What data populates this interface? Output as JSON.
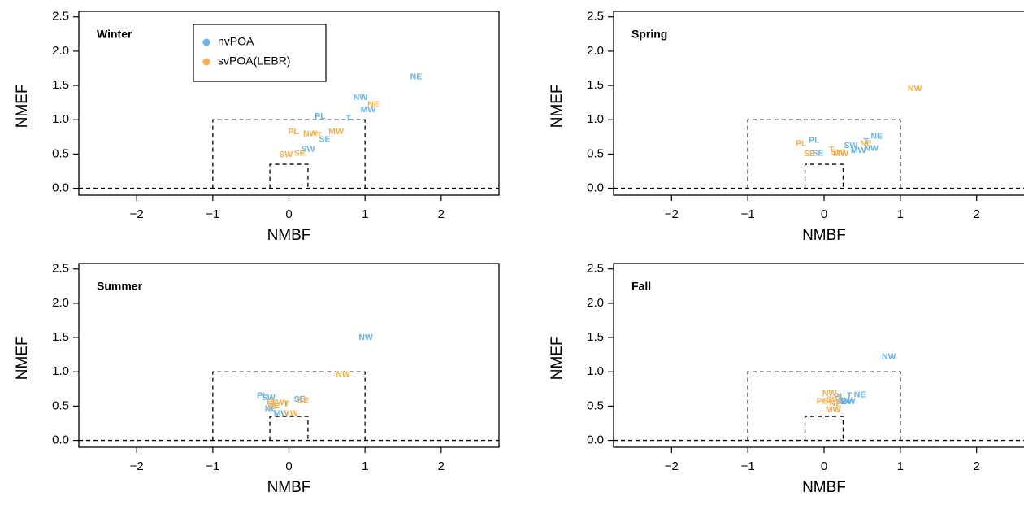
{
  "chart_data": [
    {
      "type": "scatter",
      "title": "Winter",
      "xlabel": "NMBF",
      "ylabel": "NMEF",
      "xlim": [
        -2.76,
        2.76
      ],
      "ylim": [
        -0.1,
        2.58
      ],
      "xticks": [
        -2,
        -1,
        0,
        1,
        2
      ],
      "yticks": [
        {
          "value": 0,
          "label": "0.0"
        },
        {
          "value": 0.5,
          "label": "0.5"
        },
        {
          "value": 1,
          "label": "1.0"
        },
        {
          "value": 1.5,
          "label": "1.5"
        },
        {
          "value": 2,
          "label": "2.0"
        },
        {
          "value": 2.5,
          "label": "2.5"
        }
      ],
      "reference_boxes": [
        {
          "x": [
            -1,
            1
          ],
          "y": [
            0,
            1
          ]
        },
        {
          "x": [
            -0.25,
            0.25
          ],
          "y": [
            0,
            0.35
          ]
        }
      ],
      "hline": 0,
      "legend": "top-left",
      "series": [
        {
          "name": "nvPOA",
          "color": "#66b3ee",
          "labels": [
            "NE",
            "NW",
            "MW",
            "T",
            "PL",
            "SE",
            "SW"
          ],
          "x": [
            1.67,
            0.94,
            1.04,
            0.78,
            0.41,
            0.47,
            0.25
          ],
          "values": [
            1.62,
            1.32,
            1.14,
            1.02,
            1.05,
            0.71,
            0.57
          ]
        },
        {
          "name": "svPOA(LEBR)",
          "color": "#f9ae4b",
          "labels": [
            "NE",
            "MW",
            "PL",
            "NW",
            "T",
            "SW",
            "SE"
          ],
          "x": [
            1.11,
            0.62,
            0.06,
            0.28,
            0.4,
            -0.04,
            0.14
          ],
          "values": [
            1.22,
            0.82,
            0.82,
            0.79,
            0.77,
            0.49,
            0.51
          ]
        }
      ]
    },
    {
      "type": "scatter",
      "title": "Spring",
      "xlabel": "NMBF",
      "ylabel": "NMEF",
      "xlim": [
        -2.76,
        2.76
      ],
      "ylim": [
        -0.1,
        2.58
      ],
      "xticks": [
        -2,
        -1,
        0,
        1,
        2
      ],
      "yticks": [
        {
          "value": 0,
          "label": "0.0"
        },
        {
          "value": 0.5,
          "label": "0.5"
        },
        {
          "value": 1,
          "label": "1.0"
        },
        {
          "value": 1.5,
          "label": "1.5"
        },
        {
          "value": 2,
          "label": "2.0"
        },
        {
          "value": 2.5,
          "label": "2.5"
        }
      ],
      "reference_boxes": [
        {
          "x": [
            -1,
            1
          ],
          "y": [
            0,
            1
          ]
        },
        {
          "x": [
            -0.25,
            0.25
          ],
          "y": [
            0,
            0.35
          ]
        }
      ],
      "hline": 0,
      "series": [
        {
          "color": "#66b3ee",
          "labels": [
            "PL",
            "SE",
            "T",
            "SW",
            "NE",
            "NW",
            "MW"
          ],
          "x": [
            -0.13,
            -0.08,
            0.55,
            0.35,
            0.69,
            0.62,
            0.45
          ],
          "values": [
            0.7,
            0.51,
            0.68,
            0.62,
            0.76,
            0.58,
            0.55
          ]
        },
        {
          "color": "#f9ae4b",
          "labels": [
            "PL",
            "SE",
            "T",
            "SW",
            "NE",
            "MW",
            "NW"
          ],
          "x": [
            -0.3,
            -0.19,
            0.1,
            0.18,
            0.55,
            0.22,
            1.19
          ],
          "values": [
            0.65,
            0.5,
            0.56,
            0.52,
            0.65,
            0.5,
            1.45
          ]
        }
      ]
    },
    {
      "type": "scatter",
      "title": "Summer",
      "xlabel": "NMBF",
      "ylabel": "NMEF",
      "xlim": [
        -2.76,
        2.76
      ],
      "ylim": [
        -0.1,
        2.58
      ],
      "xticks": [
        -2,
        -1,
        0,
        1,
        2
      ],
      "yticks": [
        {
          "value": 0,
          "label": "0.0"
        },
        {
          "value": 0.5,
          "label": "0.5"
        },
        {
          "value": 1,
          "label": "1.0"
        },
        {
          "value": 1.5,
          "label": "1.5"
        },
        {
          "value": 2,
          "label": "2.0"
        },
        {
          "value": 2.5,
          "label": "2.5"
        }
      ],
      "reference_boxes": [
        {
          "x": [
            -1,
            1
          ],
          "y": [
            0,
            1
          ]
        },
        {
          "x": [
            -0.25,
            0.25
          ],
          "y": [
            0,
            0.35
          ]
        }
      ],
      "hline": 0,
      "series": [
        {
          "color": "#66b3ee",
          "labels": [
            "NW",
            "PL",
            "SW",
            "SE",
            "NE",
            "MW",
            "T"
          ],
          "x": [
            1.01,
            -0.35,
            -0.27,
            0.14,
            -0.24,
            -0.1,
            -0.04
          ],
          "values": [
            1.5,
            0.65,
            0.62,
            0.6,
            0.46,
            0.39,
            0.53
          ]
        },
        {
          "color": "#f9ae4b",
          "labels": [
            "NW",
            "SE",
            "PL",
            "SW",
            "T",
            "NE",
            "MW"
          ],
          "x": [
            0.71,
            0.19,
            -0.22,
            -0.15,
            -0.03,
            -0.2,
            0.02
          ],
          "values": [
            0.96,
            0.58,
            0.56,
            0.55,
            0.53,
            0.5,
            0.39
          ]
        }
      ]
    },
    {
      "type": "scatter",
      "title": "Fall",
      "xlabel": "NMBF",
      "ylabel": "NMEF",
      "xlim": [
        -2.76,
        2.76
      ],
      "ylim": [
        -0.1,
        2.58
      ],
      "xticks": [
        -2,
        -1,
        0,
        1,
        2
      ],
      "yticks": [
        {
          "value": 0,
          "label": "0.0"
        },
        {
          "value": 0.5,
          "label": "0.5"
        },
        {
          "value": 1,
          "label": "1.0"
        },
        {
          "value": 1.5,
          "label": "1.5"
        },
        {
          "value": 2,
          "label": "2.0"
        },
        {
          "value": 2.5,
          "label": "2.5"
        }
      ],
      "reference_boxes": [
        {
          "x": [
            -1,
            1
          ],
          "y": [
            0,
            1
          ]
        },
        {
          "x": [
            -0.25,
            0.25
          ],
          "y": [
            0,
            0.35
          ]
        }
      ],
      "hline": 0,
      "series": [
        {
          "color": "#66b3ee",
          "labels": [
            "NW",
            "NE",
            "T",
            "PL",
            "MW",
            "SE",
            "SW"
          ],
          "x": [
            0.85,
            0.47,
            0.33,
            0.2,
            0.31,
            0.22,
            0.28
          ],
          "values": [
            1.22,
            0.66,
            0.65,
            0.64,
            0.56,
            0.56,
            0.58
          ]
        },
        {
          "color": "#f9ae4b",
          "labels": [
            "NW",
            "PL",
            "SE",
            "SW",
            "T",
            "NE",
            "MW"
          ],
          "x": [
            0.07,
            -0.03,
            0.06,
            0.12,
            0.2,
            0.15,
            0.12
          ],
          "values": [
            0.68,
            0.57,
            0.57,
            0.59,
            0.62,
            0.53,
            0.44
          ]
        }
      ]
    }
  ]
}
